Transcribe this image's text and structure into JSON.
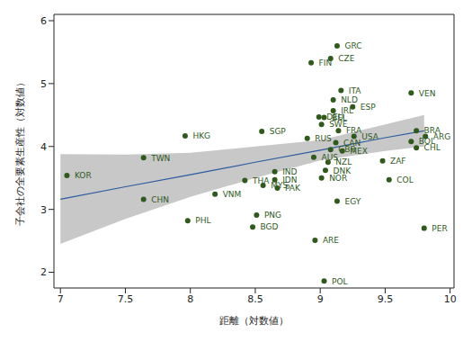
{
  "chart_data": {
    "type": "scatter",
    "x_label": "距離（対数値）",
    "y_label": "子会社の全要素生産性（対数値）",
    "color": "#2f5a1c",
    "labels": [
      "GRC",
      "FIN",
      "CZE",
      "ITA",
      "VEN",
      "NLD",
      "IRL",
      "ESP",
      "DEU",
      "BEL",
      "SWE",
      "HKG",
      "SGP",
      "RUS",
      "FRA",
      "USA",
      "BRA",
      "ARG",
      "BOL",
      "CHL",
      "CAN",
      "GBR",
      "MEX",
      "AUS",
      "NZL",
      "DNK",
      "NOR",
      "ZAF",
      "COL",
      "EGY",
      "PER",
      "ARE",
      "POL",
      "IND",
      "THA",
      "IDN",
      "MYS",
      "PAK",
      "VNM",
      "PNG",
      "BGD",
      "PHL",
      "CHN",
      "TWN",
      "KOR"
    ],
    "x": [
      9.13,
      8.93,
      9.08,
      9.16,
      9.7,
      9.1,
      9.1,
      9.25,
      8.99,
      9.03,
      9.01,
      7.96,
      8.55,
      8.9,
      9.14,
      9.26,
      9.74,
      9.81,
      9.7,
      9.74,
      9.12,
      9.08,
      9.17,
      8.95,
      9.06,
      9.04,
      9.01,
      9.48,
      9.53,
      9.13,
      9.8,
      8.96,
      9.03,
      8.65,
      8.42,
      8.65,
      8.56,
      8.67,
      8.19,
      8.51,
      8.48,
      7.98,
      7.64,
      7.64,
      7.05
    ],
    "values": [
      5.6,
      5.33,
      5.4,
      4.89,
      4.85,
      4.74,
      4.57,
      4.63,
      4.47,
      4.46,
      4.35,
      4.17,
      4.24,
      4.13,
      4.25,
      4.16,
      4.25,
      4.16,
      4.08,
      3.98,
      4.06,
      3.95,
      3.93,
      3.83,
      3.75,
      3.62,
      3.5,
      3.77,
      3.47,
      3.13,
      2.7,
      2.51,
      1.86,
      3.6,
      3.46,
      3.47,
      3.38,
      3.34,
      3.24,
      2.91,
      2.72,
      2.82,
      3.16,
      3.82,
      3.54
    ],
    "fit": {
      "color": "#2b5aa0",
      "x": [
        7,
        7.5,
        8,
        8.5,
        9,
        9.5,
        9.8
      ],
      "values": [
        3.16,
        3.36,
        3.55,
        3.75,
        3.94,
        4.14,
        4.25
      ],
      "lower": [
        2.45,
        2.85,
        3.2,
        3.5,
        3.78,
        3.93,
        4.0
      ],
      "upper": [
        3.88,
        3.87,
        3.9,
        4.0,
        4.1,
        4.35,
        4.5
      ]
    },
    "xlim": [
      6.95,
      10.03
    ],
    "xticks": [
      7,
      7.5,
      8,
      8.5,
      9,
      9.5,
      10
    ],
    "ylim": [
      1.75,
      6.1
    ],
    "yticks": [
      2,
      3,
      4,
      5,
      6
    ],
    "grid": false
  }
}
